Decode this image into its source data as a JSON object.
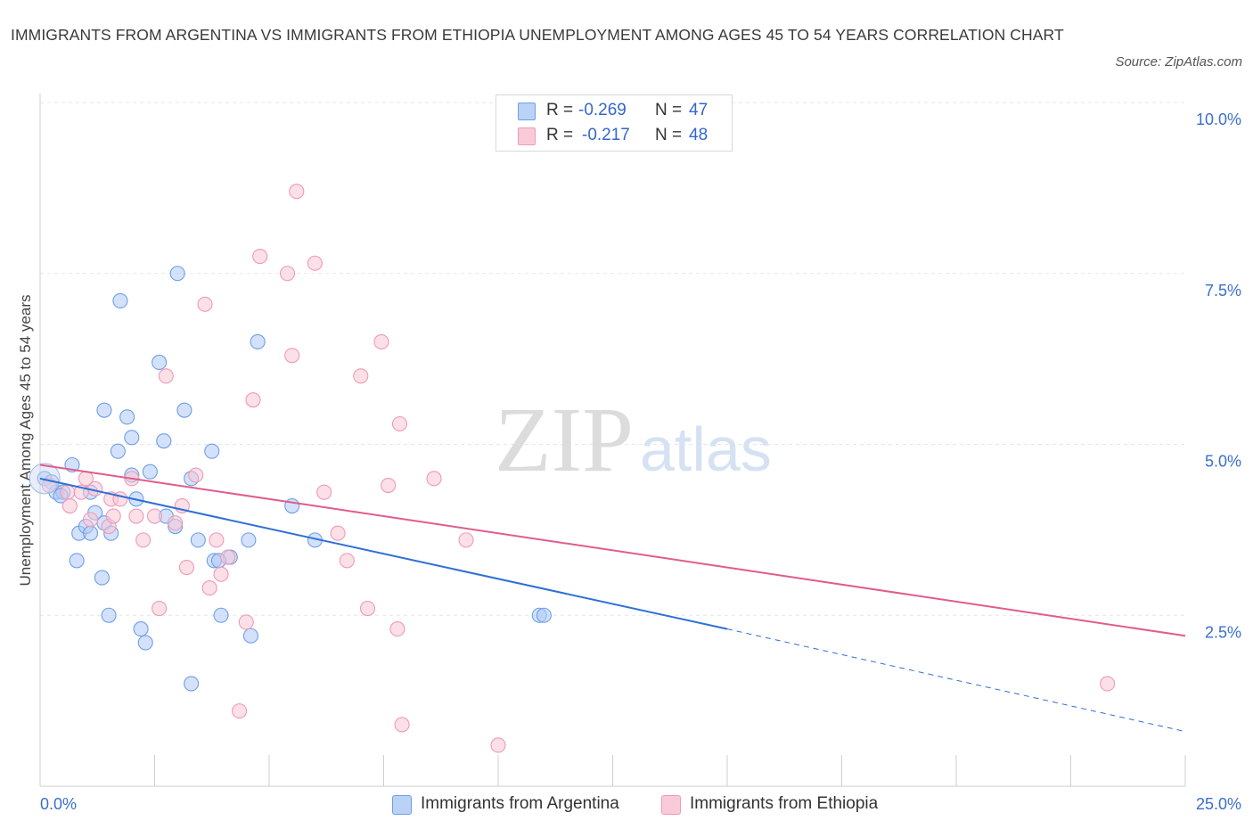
{
  "chart_data": {
    "type": "scatter",
    "title": "IMMIGRANTS FROM ARGENTINA VS IMMIGRANTS FROM ETHIOPIA UNEMPLOYMENT AMONG AGES 45 TO 54 YEARS CORRELATION CHART",
    "source": "Source: ZipAtlas.com",
    "xlabel": "",
    "ylabel": "Unemployment Among Ages 45 to 54 years",
    "xlim": [
      0,
      25
    ],
    "ylim": [
      0,
      10
    ],
    "x_tick_labels": {
      "left": "0.0%",
      "right": "25.0%"
    },
    "y_ticks": [
      {
        "value": 2.5,
        "label": "2.5%"
      },
      {
        "value": 5.0,
        "label": "5.0%"
      },
      {
        "value": 7.5,
        "label": "7.5%"
      },
      {
        "value": 10.0,
        "label": "10.0%"
      }
    ],
    "grid": true,
    "watermark": {
      "zip": "ZIP",
      "atlas": "atlas"
    },
    "series": [
      {
        "name": "Immigrants from Argentina",
        "color": "#6f9ee8",
        "fill": "#aecaf5",
        "line_color": "#2f6fd6",
        "stats": {
          "r_label": "R =",
          "r": "-0.269",
          "n_label": "N =",
          "n": "47"
        },
        "trend": {
          "x0": 0,
          "y0": 4.5,
          "x1": 15,
          "y1": 2.3,
          "x_dash_end": 25,
          "y_dash_end": 0.8
        },
        "points": [
          [
            0.1,
            4.5
          ],
          [
            0.25,
            4.45
          ],
          [
            0.35,
            4.3
          ],
          [
            0.5,
            4.3
          ],
          [
            0.45,
            4.25
          ],
          [
            0.7,
            4.7
          ],
          [
            0.85,
            3.7
          ],
          [
            1.0,
            3.8
          ],
          [
            1.1,
            4.3
          ],
          [
            1.1,
            3.7
          ],
          [
            1.2,
            4.0
          ],
          [
            1.4,
            3.85
          ],
          [
            0.8,
            3.3
          ],
          [
            1.35,
            3.05
          ],
          [
            1.5,
            2.5
          ],
          [
            1.4,
            5.5
          ],
          [
            1.7,
            4.9
          ],
          [
            1.75,
            7.1
          ],
          [
            1.9,
            5.4
          ],
          [
            2.0,
            4.55
          ],
          [
            2.0,
            5.1
          ],
          [
            2.1,
            4.2
          ],
          [
            2.2,
            2.3
          ],
          [
            2.3,
            2.1
          ],
          [
            2.4,
            4.6
          ],
          [
            2.6,
            6.2
          ],
          [
            2.7,
            5.05
          ],
          [
            2.75,
            3.95
          ],
          [
            2.95,
            3.8
          ],
          [
            3.0,
            7.5
          ],
          [
            3.15,
            5.5
          ],
          [
            3.3,
            4.5
          ],
          [
            3.3,
            1.5
          ],
          [
            3.45,
            3.6
          ],
          [
            3.75,
            4.9
          ],
          [
            3.8,
            3.3
          ],
          [
            3.95,
            2.5
          ],
          [
            4.15,
            3.35
          ],
          [
            4.55,
            3.6
          ],
          [
            4.6,
            2.2
          ],
          [
            4.75,
            6.5
          ],
          [
            5.5,
            4.1
          ],
          [
            6.0,
            3.6
          ],
          [
            10.9,
            2.5
          ],
          [
            11.0,
            2.5
          ],
          [
            3.9,
            3.3
          ],
          [
            1.55,
            3.7
          ]
        ]
      },
      {
        "name": "Immigrants from Ethiopia",
        "color": "#ef9ab5",
        "fill": "#f8c7d6",
        "line_color": "#e05c8c",
        "stats": {
          "r_label": "R =",
          "r": "-0.217",
          "n_label": "N =",
          "n": "48"
        },
        "trend": {
          "x0": 0,
          "y0": 4.7,
          "x1": 25,
          "y1": 2.2
        },
        "points": [
          [
            0.2,
            4.4
          ],
          [
            0.6,
            4.3
          ],
          [
            0.65,
            4.1
          ],
          [
            0.9,
            4.3
          ],
          [
            1.0,
            4.5
          ],
          [
            1.1,
            3.9
          ],
          [
            1.2,
            4.35
          ],
          [
            1.5,
            3.8
          ],
          [
            1.55,
            4.2
          ],
          [
            1.6,
            3.95
          ],
          [
            1.75,
            4.2
          ],
          [
            2.0,
            4.5
          ],
          [
            2.1,
            3.95
          ],
          [
            2.25,
            3.6
          ],
          [
            2.5,
            3.95
          ],
          [
            2.6,
            2.6
          ],
          [
            2.75,
            6.0
          ],
          [
            2.95,
            3.85
          ],
          [
            3.1,
            4.1
          ],
          [
            3.2,
            3.2
          ],
          [
            3.4,
            4.55
          ],
          [
            3.6,
            7.05
          ],
          [
            3.7,
            2.9
          ],
          [
            3.85,
            3.6
          ],
          [
            3.95,
            3.1
          ],
          [
            4.1,
            3.35
          ],
          [
            4.35,
            1.1
          ],
          [
            4.5,
            2.4
          ],
          [
            4.65,
            5.65
          ],
          [
            4.8,
            7.75
          ],
          [
            5.4,
            7.5
          ],
          [
            5.5,
            6.3
          ],
          [
            5.6,
            8.7
          ],
          [
            6.0,
            7.65
          ],
          [
            6.2,
            4.3
          ],
          [
            6.5,
            3.7
          ],
          [
            6.7,
            3.3
          ],
          [
            7.0,
            6.0
          ],
          [
            7.15,
            2.6
          ],
          [
            7.45,
            6.5
          ],
          [
            7.6,
            4.4
          ],
          [
            7.85,
            5.3
          ],
          [
            7.8,
            2.3
          ],
          [
            7.9,
            0.9
          ],
          [
            8.6,
            4.5
          ],
          [
            9.3,
            3.6
          ],
          [
            10.0,
            0.6
          ],
          [
            23.3,
            1.5
          ]
        ]
      }
    ]
  }
}
